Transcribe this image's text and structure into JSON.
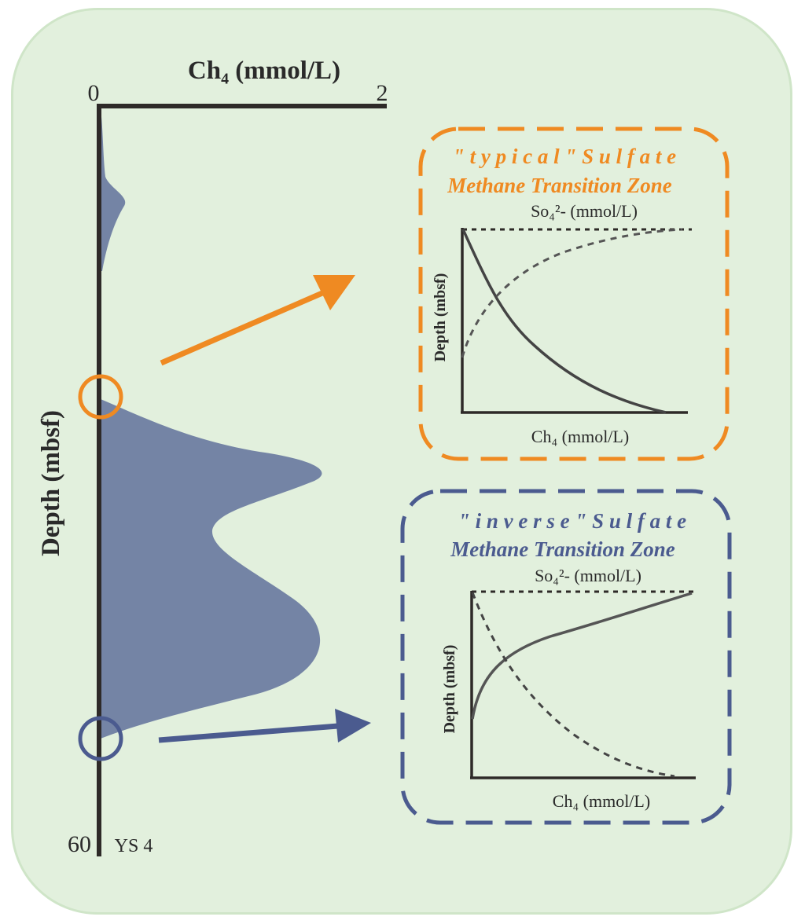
{
  "main_plot": {
    "x_axis_label": "Ch₄ (mmol/L)",
    "x_min_label": "0",
    "x_max_label": "2",
    "y_axis_label": "Depth (mbsf)",
    "y_max_label": "60",
    "site_label": "YS 4"
  },
  "typical_box": {
    "title_line1": "\" t y p i c a l \" S u l f a t e",
    "title_line2": "Methane Transition Zone",
    "top_axis_label": "So₄²- (mmol/L)",
    "y_axis_label": "Depth (mbsf)",
    "bottom_axis_label": "Ch₄ (mmol/L)"
  },
  "inverse_box": {
    "title_line1": "\" i n v e r s e \" S u l f a t e",
    "title_line2": "Methane Transition Zone",
    "top_axis_label": "So₄²- (mmol/L)",
    "y_axis_label": "Depth (mbsf)",
    "bottom_axis_label": "Ch₄ (mmol/L)"
  },
  "colors": {
    "background": "#e2f0dd",
    "orange": "#ef8a22",
    "blue": "#4b5b8f",
    "profile_fill": "#7484a5",
    "axis": "#2e2a28"
  }
}
